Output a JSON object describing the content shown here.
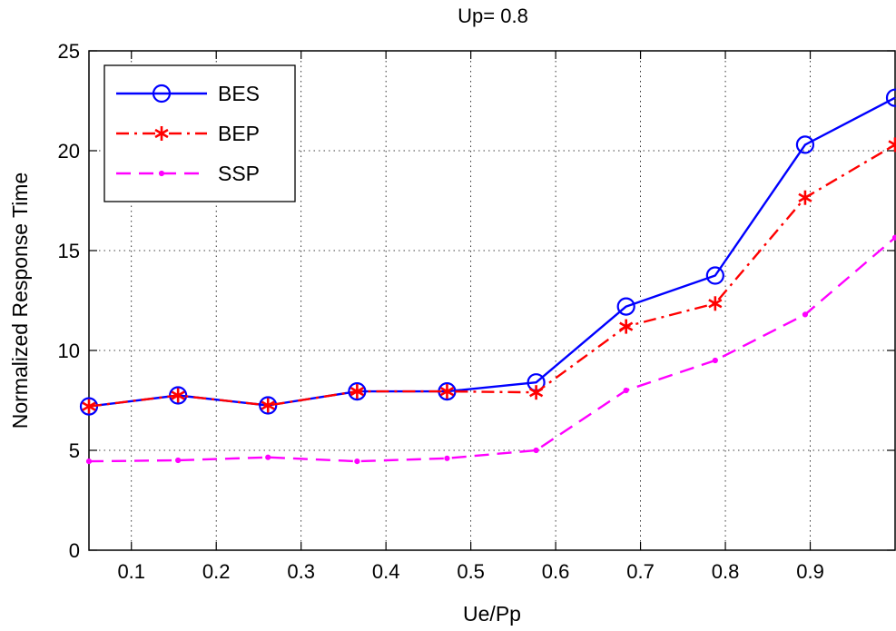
{
  "chart_data": {
    "type": "line",
    "title": "Up= 0.8",
    "xlabel": "Ue/Pp",
    "ylabel": "Normalized Response Time",
    "xlim": [
      0.05,
      1.0
    ],
    "ylim": [
      0,
      25
    ],
    "x_ticks": [
      0.1,
      0.2,
      0.3,
      0.4,
      0.5,
      0.6,
      0.7,
      0.8,
      0.9
    ],
    "y_ticks": [
      0,
      5,
      10,
      15,
      20,
      25
    ],
    "grid": true,
    "legend_position": "top-left",
    "x": [
      0.05,
      0.155,
      0.261,
      0.366,
      0.472,
      0.577,
      0.683,
      0.788,
      0.894,
      1.0
    ],
    "series": [
      {
        "name": "BES",
        "color": "#0000ff",
        "marker": "circle",
        "dash": "solid",
        "values": [
          7.2,
          7.75,
          7.25,
          7.95,
          7.95,
          8.4,
          12.2,
          13.75,
          20.3,
          22.65
        ]
      },
      {
        "name": "BEP",
        "color": "#ff0000",
        "marker": "star",
        "dash": "dashdot",
        "values": [
          7.2,
          7.75,
          7.25,
          7.95,
          7.95,
          7.9,
          11.2,
          12.35,
          17.65,
          20.3
        ]
      },
      {
        "name": "SSP",
        "color": "#ff00ff",
        "marker": "dot",
        "dash": "dashed",
        "values": [
          4.45,
          4.5,
          4.65,
          4.45,
          4.6,
          5.0,
          8.0,
          9.5,
          11.8,
          15.65
        ]
      }
    ]
  }
}
